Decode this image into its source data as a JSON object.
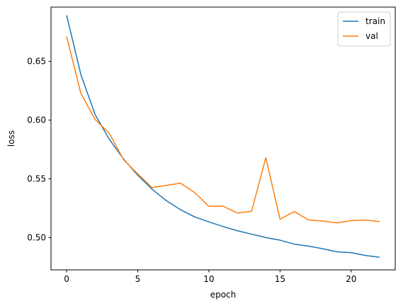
{
  "chart_data": {
    "type": "line",
    "xlabel": "epoch",
    "ylabel": "loss",
    "xlim": [
      -1.1,
      23.1
    ],
    "ylim": [
      0.4725,
      0.6962
    ],
    "xticks": [
      0,
      5,
      10,
      15,
      20
    ],
    "yticks": [
      0.5,
      0.55,
      0.6,
      0.65
    ],
    "x": [
      0,
      1,
      2,
      3,
      4,
      5,
      6,
      7,
      8,
      9,
      10,
      11,
      12,
      13,
      14,
      15,
      16,
      17,
      18,
      19,
      20,
      21,
      22
    ],
    "series": [
      {
        "name": "train",
        "color": "#1f77b4",
        "values": [
          0.6892,
          0.6388,
          0.6047,
          0.5836,
          0.5669,
          0.5531,
          0.5412,
          0.5315,
          0.5237,
          0.5176,
          0.5133,
          0.5094,
          0.5058,
          0.5029,
          0.5,
          0.4978,
          0.4944,
          0.4927,
          0.4905,
          0.4879,
          0.4871,
          0.4848,
          0.4832
        ]
      },
      {
        "name": "val",
        "color": "#ff7f0e",
        "values": [
          0.6712,
          0.6227,
          0.6006,
          0.5887,
          0.5663,
          0.5542,
          0.5426,
          0.5444,
          0.5463,
          0.5383,
          0.5266,
          0.5267,
          0.5209,
          0.5224,
          0.568,
          0.5156,
          0.5222,
          0.515,
          0.5141,
          0.5125,
          0.5144,
          0.5149,
          0.5136
        ]
      }
    ],
    "grid": false,
    "legend": "top-right"
  }
}
